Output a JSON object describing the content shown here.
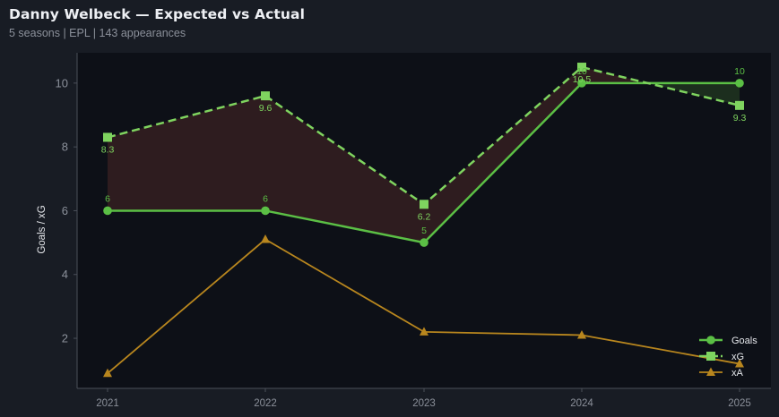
{
  "header": {
    "title": "Danny Welbeck — Expected vs Actual",
    "subtitle": "5 seasons | EPL | 143 appearances"
  },
  "colors": {
    "background": "#181c24",
    "plot_background": "#0d1017",
    "axis": "#4a4f59",
    "goals": "#5bbf45",
    "xg": "#7fd45f",
    "xa": "#b8861e",
    "underperform_fill": "#2e1c1f",
    "overperform_fill": "#1c2e1e"
  },
  "legend": {
    "items": [
      {
        "label": "Goals",
        "marker": "circle-icon"
      },
      {
        "label": "xG",
        "marker": "square-icon"
      },
      {
        "label": "xA",
        "marker": "triangle-icon"
      }
    ]
  },
  "chart_data": {
    "type": "line",
    "title": "Danny Welbeck — Expected vs Actual",
    "subtitle": "5 seasons | EPL | 143 appearances",
    "xlabel": "",
    "ylabel": "Goals / xG",
    "categories": [
      "2021",
      "2022",
      "2023",
      "2024",
      "2025"
    ],
    "x": [
      2021,
      2022,
      2023,
      2024,
      2025
    ],
    "series": [
      {
        "name": "Goals",
        "values": [
          6,
          6,
          5,
          10,
          10
        ],
        "style": "solid",
        "marker": "circle",
        "labels": [
          "6",
          "6",
          "5",
          "10",
          "10"
        ]
      },
      {
        "name": "xG",
        "values": [
          8.3,
          9.6,
          6.2,
          10.5,
          9.3
        ],
        "style": "dashed",
        "marker": "square",
        "labels": [
          "8.3",
          "9.6",
          "6.2",
          "10.5",
          "9.3"
        ]
      },
      {
        "name": "xA",
        "values": [
          0.9,
          5.1,
          2.2,
          2.1,
          1.2
        ],
        "style": "solid",
        "marker": "triangle"
      }
    ],
    "yticks": [
      2,
      4,
      6,
      8,
      10
    ],
    "ylim": [
      0.43,
      10.95
    ],
    "grid": false,
    "legend_position": "lower right",
    "annotations": [
      "Shaded region between Goals and xG: red where Goals < xG, green where Goals > xG"
    ]
  }
}
